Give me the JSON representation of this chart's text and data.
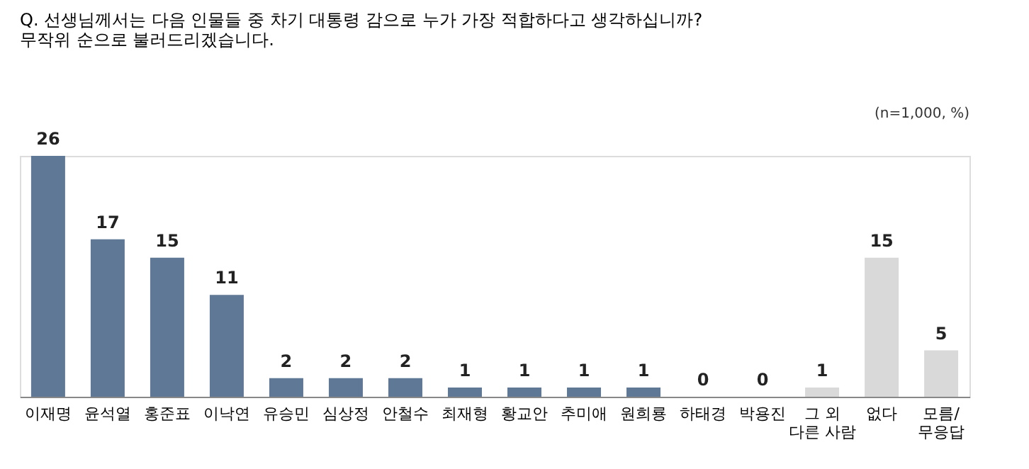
{
  "chart_data": {
    "type": "bar",
    "title": [
      "Q. 선생님께서는 다음 인물들 중 차기 대통령 감으로 누가 가장 적합하다고 생각하십니까?",
      "무작위 순으로 불러드리겠습니다."
    ],
    "annotations": [
      "(n=1,000,  %)"
    ],
    "categories": [
      "이재명",
      "윤석열",
      "홍준표",
      "이낙연",
      "유승민",
      "심상정",
      "안철수",
      "최재형",
      "황교안",
      "추미애",
      "원희룡",
      "하태경",
      "박용진",
      "그 외\n다른 사람",
      "없다",
      "모름/\n무응답"
    ],
    "values": [
      26,
      17,
      15,
      11,
      2,
      2,
      2,
      1,
      1,
      1,
      1,
      0,
      0,
      1,
      15,
      5
    ],
    "colors": [
      "#5f7896",
      "#5f7896",
      "#5f7896",
      "#5f7896",
      "#5f7896",
      "#5f7896",
      "#5f7896",
      "#5f7896",
      "#5f7896",
      "#5f7896",
      "#5f7896",
      "#5f7896",
      "#5f7896",
      "#d9d9d9",
      "#d9d9d9",
      "#d9d9d9"
    ],
    "data_labels": true,
    "grid": false
  }
}
